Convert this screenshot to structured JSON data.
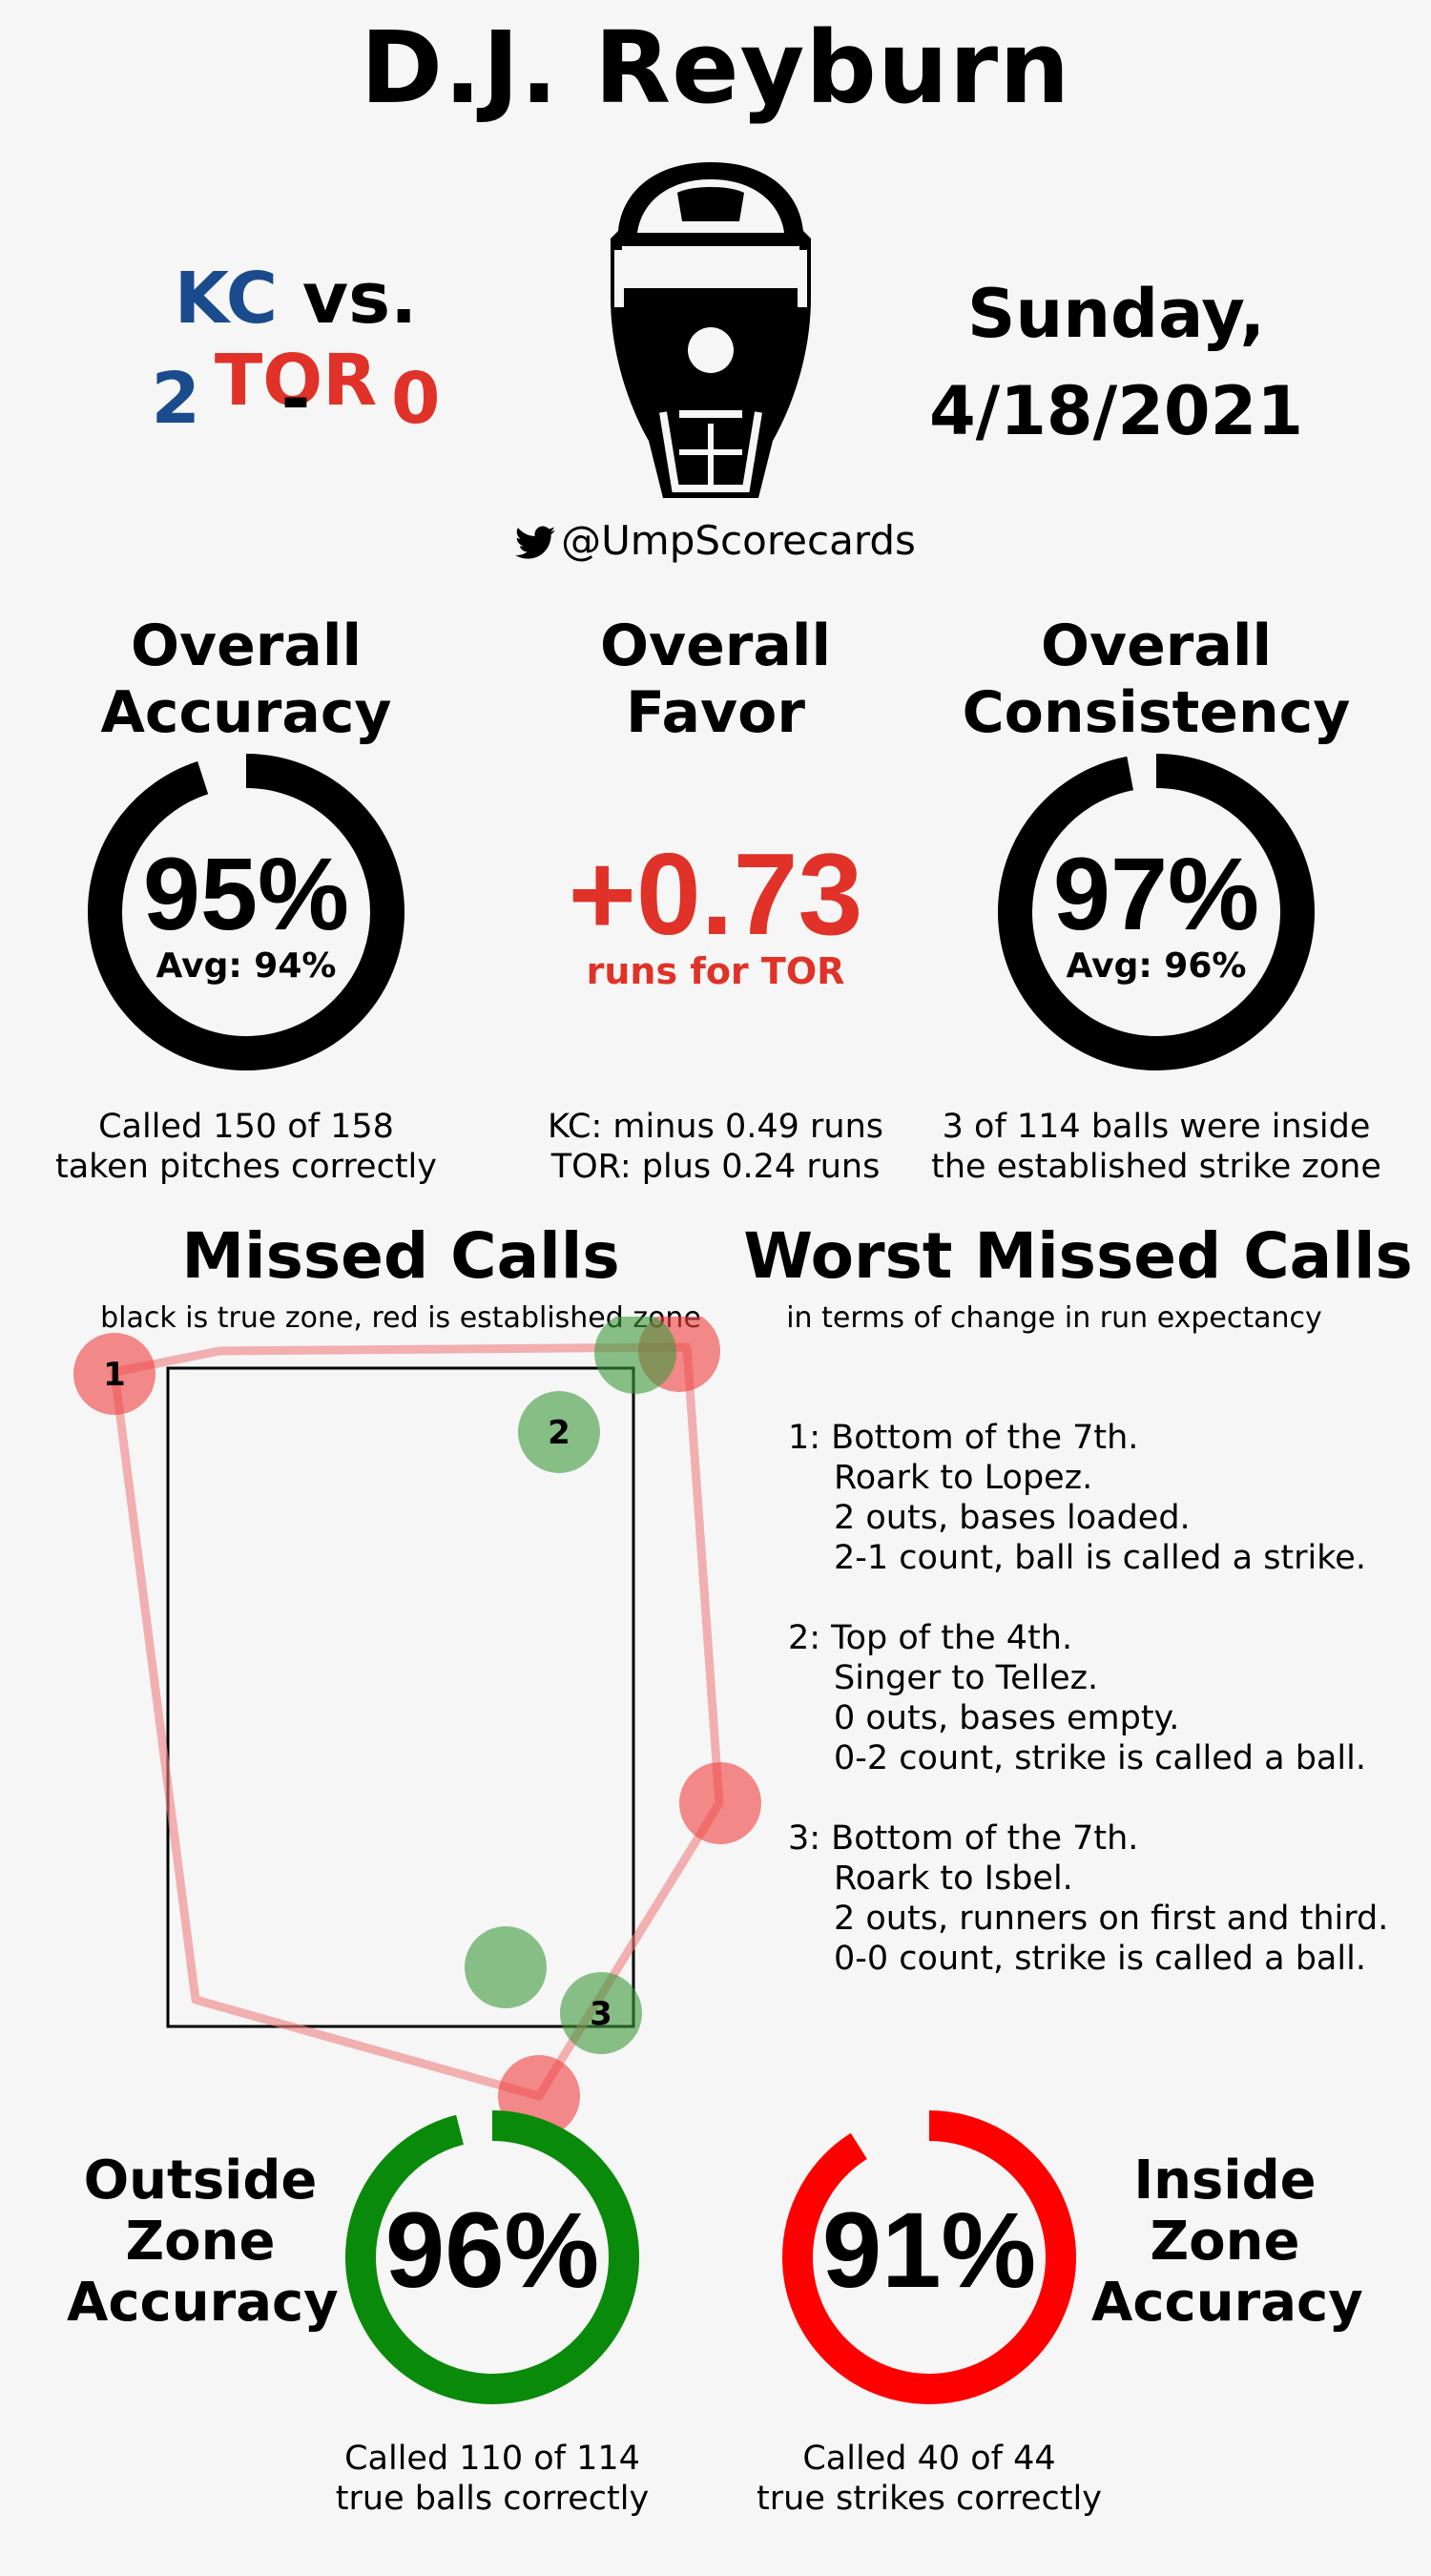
{
  "header": {
    "umpire_name": "D.J. Reyburn",
    "away_team": "KC",
    "vs_label": "vs.",
    "home_team": "TOR",
    "away_score": "2",
    "score_sep": "-",
    "home_score": "0",
    "day": "Sunday,",
    "date": "4/18/2021",
    "twitter_handle": "@UmpScorecards",
    "colors": {
      "away": "#1a4b8c",
      "home": "#e03228"
    }
  },
  "stats": {
    "accuracy": {
      "title_line1": "Overall",
      "title_line2": "Accuracy",
      "value": "95%",
      "avg": "Avg: 94%",
      "fill_fraction": 0.95,
      "caption_line1": "Called 150 of 158",
      "caption_line2": "taken pitches correctly"
    },
    "favor": {
      "title_line1": "Overall",
      "title_line2": "Favor",
      "value": "+0.73",
      "sub": "runs for TOR",
      "caption_line1": "KC: minus 0.49 runs",
      "caption_line2": "TOR: plus 0.24 runs",
      "color": "#e03228"
    },
    "consistency": {
      "title_line1": "Overall",
      "title_line2": "Consistency",
      "value": "97%",
      "avg": "Avg: 96%",
      "fill_fraction": 0.97,
      "caption_line1": "3 of 114 balls were inside",
      "caption_line2": "the established strike zone"
    }
  },
  "missed_calls": {
    "title": "Missed Calls",
    "subtitle": "black is true zone, red is established zone",
    "markers": [
      {
        "label": "1",
        "color": "red"
      },
      {
        "label": "2",
        "color": "green"
      },
      {
        "label": "3",
        "color": "green"
      }
    ],
    "colors": {
      "true_zone": "#000000",
      "established_zone": "#f08080",
      "ball_called_strike": "#f04040",
      "strike_called_ball": "#3c9a3c"
    }
  },
  "worst_missed": {
    "title": "Worst Missed Calls",
    "subtitle": "in terms of change in run expectancy",
    "items": [
      {
        "line1": "1: Bottom of the 7th.",
        "line2": "Roark to Lopez.",
        "line3": "2 outs, bases loaded.",
        "line4": "2-1 count, ball is called a strike."
      },
      {
        "line1": "2: Top of the 4th.",
        "line2": "Singer to Tellez.",
        "line3": "0 outs, bases empty.",
        "line4": "0-2 count, strike is called a ball."
      },
      {
        "line1": "3: Bottom of the 7th.",
        "line2": "Roark to Isbel.",
        "line3": "2 outs, runners on first and third.",
        "line4": "0-0 count, strike is called a ball."
      }
    ]
  },
  "zone_accuracy": {
    "outside": {
      "label_line1": "Outside",
      "label_line2": "Zone",
      "label_line3": "Accuracy",
      "value": "96%",
      "fill_fraction": 0.96,
      "color": "#0a8a0a",
      "caption_line1": "Called 110 of 114",
      "caption_line2": "true balls correctly"
    },
    "inside": {
      "label_line1": "Inside",
      "label_line2": "Zone",
      "label_line3": "Accuracy",
      "value": "91%",
      "fill_fraction": 0.91,
      "color": "#ff0000",
      "caption_line1": "Called 40 of 44",
      "caption_line2": "true strikes correctly"
    }
  }
}
